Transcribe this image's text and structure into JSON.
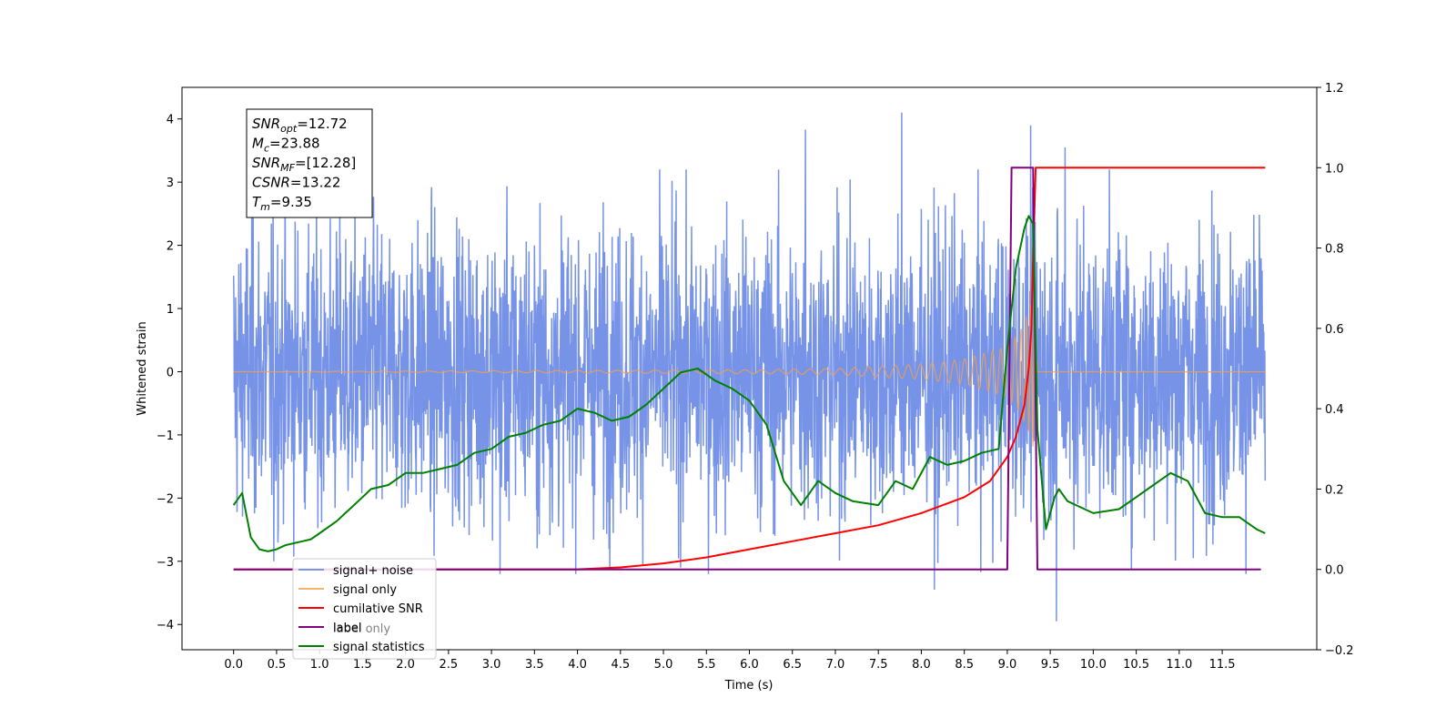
{
  "chart_data": {
    "type": "line",
    "title": "",
    "xlabel": "Time (s)",
    "ylabel": "Whitened strain",
    "y2label": "",
    "xlim": [
      -0.6,
      12.6
    ],
    "ylim": [
      -4.4,
      4.5
    ],
    "y2lim": [
      -0.2,
      1.2
    ],
    "xticks": [
      0.0,
      0.5,
      1.0,
      1.5,
      2.0,
      2.5,
      3.0,
      3.5,
      4.0,
      4.5,
      5.0,
      5.5,
      6.0,
      6.5,
      7.0,
      7.5,
      8.0,
      8.5,
      9.0,
      9.5,
      10.0,
      10.5,
      11.0,
      11.5
    ],
    "xtick_labels": [
      "0.0",
      "0.5",
      "1.0",
      "1.5",
      "2.0",
      "2.5",
      "3.0",
      "3.5",
      "4.0",
      "4.5",
      "5.0",
      "5.5",
      "6.0",
      "6.5",
      "7.0",
      "7.5",
      "8.0",
      "8.5",
      "9.0",
      "9.5",
      "10.0",
      "10.5",
      "11.0",
      "11.5"
    ],
    "yticks": [
      -4,
      -3,
      -2,
      -1,
      0,
      1,
      2,
      3,
      4
    ],
    "ytick_labels": [
      "−4",
      "−3",
      "−2",
      "−1",
      "0",
      "1",
      "2",
      "3",
      "4"
    ],
    "y2ticks": [
      -0.2,
      0.0,
      0.2,
      0.4,
      0.6,
      0.8,
      1.0,
      1.2
    ],
    "y2tick_labels": [
      "−0.2",
      "0.0",
      "0.2",
      "0.4",
      "0.6",
      "0.8",
      "1.0",
      "1.2"
    ],
    "grid": false,
    "legend_position": "lower-left",
    "annotation": {
      "lines": [
        {
          "main": "SNR",
          "sub": "opt",
          "rest": "=12.72"
        },
        {
          "main": "M",
          "sub": "c",
          "rest": "=23.88"
        },
        {
          "main": "SNR",
          "sub": "MF",
          "rest": "=[12.28]"
        },
        {
          "main": "CSNR",
          "sub": "",
          "rest": "=13.22"
        },
        {
          "main": "T",
          "sub": "m",
          "rest": "=9.35"
        }
      ]
    },
    "series": [
      {
        "name": "signal+ noise",
        "axis": "left",
        "color": "#6f8de6",
        "style": "noise",
        "x_range": [
          0.0,
          12.0
        ],
        "typical_band": [
          -1.7,
          1.7
        ],
        "extremes": [
          {
            "x": 7.77,
            "y": 4.1
          },
          {
            "x": 9.27,
            "y": 3.9
          },
          {
            "x": 6.65,
            "y": 3.83
          },
          {
            "x": 9.67,
            "y": 3.55
          },
          {
            "x": 9.57,
            "y": -3.95
          },
          {
            "x": 8.15,
            "y": -3.45
          },
          {
            "x": 3.1,
            "y": -3.2
          },
          {
            "x": 0.47,
            "y": -3.0
          }
        ]
      },
      {
        "name": "signal only",
        "axis": "left",
        "color": "#f5a04a",
        "style": "chirp",
        "x": [
          0.0,
          6.0,
          7.0,
          8.0,
          8.5,
          9.0,
          9.15,
          9.25,
          9.3,
          9.32,
          9.35,
          12.0
        ],
        "envelope": [
          0.0,
          0.03,
          0.05,
          0.12,
          0.2,
          0.4,
          0.65,
          0.95,
          1.2,
          1.0,
          0.0,
          0.0
        ]
      },
      {
        "name": "cumilative SNR",
        "axis": "right",
        "color": "#ff0000",
        "x": [
          0.0,
          4.0,
          4.5,
          5.0,
          5.5,
          6.0,
          6.5,
          7.0,
          7.5,
          8.0,
          8.5,
          8.8,
          9.0,
          9.1,
          9.2,
          9.25,
          9.28,
          9.3,
          9.33,
          9.35,
          12.0
        ],
        "values": [
          0.0,
          0.0,
          0.005,
          0.015,
          0.03,
          0.05,
          0.07,
          0.09,
          0.11,
          0.14,
          0.18,
          0.22,
          0.28,
          0.33,
          0.41,
          0.5,
          0.6,
          0.78,
          1.0,
          1.0,
          1.0
        ]
      },
      {
        "name": "label",
        "axis": "right",
        "color": "#800080",
        "x": [
          0.0,
          9.0,
          9.05,
          9.3,
          9.35,
          11.95
        ],
        "values": [
          0.0,
          0.0,
          1.0,
          1.0,
          0.0,
          0.0
        ]
      },
      {
        "name": "label only",
        "axis": "right",
        "color": "#ffffff",
        "legend_hidden_behind": true,
        "x": [],
        "values": []
      },
      {
        "name": "signal statistics",
        "axis": "right",
        "color": "#008000",
        "x": [
          0.0,
          0.1,
          0.2,
          0.3,
          0.4,
          0.5,
          0.6,
          0.8,
          0.9,
          1.0,
          1.2,
          1.5,
          1.6,
          1.8,
          2.0,
          2.2,
          2.4,
          2.6,
          2.8,
          3.0,
          3.2,
          3.4,
          3.6,
          3.8,
          4.0,
          4.2,
          4.4,
          4.6,
          4.8,
          5.0,
          5.2,
          5.4,
          5.6,
          5.8,
          6.0,
          6.2,
          6.4,
          6.6,
          6.8,
          7.0,
          7.2,
          7.5,
          7.7,
          7.9,
          8.1,
          8.3,
          8.5,
          8.7,
          8.9,
          9.0,
          9.1,
          9.2,
          9.25,
          9.3,
          9.35,
          9.45,
          9.55,
          9.6,
          9.7,
          9.8,
          10.0,
          10.3,
          10.5,
          10.7,
          10.9,
          11.1,
          11.3,
          11.5,
          11.7,
          11.9,
          12.0
        ],
        "values": [
          0.16,
          0.19,
          0.08,
          0.05,
          0.045,
          0.05,
          0.06,
          0.07,
          0.075,
          0.09,
          0.12,
          0.18,
          0.2,
          0.21,
          0.24,
          0.24,
          0.25,
          0.26,
          0.29,
          0.3,
          0.33,
          0.34,
          0.36,
          0.37,
          0.4,
          0.39,
          0.37,
          0.38,
          0.41,
          0.45,
          0.49,
          0.5,
          0.47,
          0.45,
          0.42,
          0.36,
          0.22,
          0.16,
          0.22,
          0.19,
          0.17,
          0.16,
          0.22,
          0.2,
          0.28,
          0.26,
          0.27,
          0.29,
          0.3,
          0.55,
          0.75,
          0.85,
          0.88,
          0.86,
          0.35,
          0.1,
          0.18,
          0.2,
          0.17,
          0.16,
          0.14,
          0.15,
          0.18,
          0.21,
          0.24,
          0.22,
          0.14,
          0.13,
          0.13,
          0.1,
          0.09
        ]
      }
    ]
  }
}
